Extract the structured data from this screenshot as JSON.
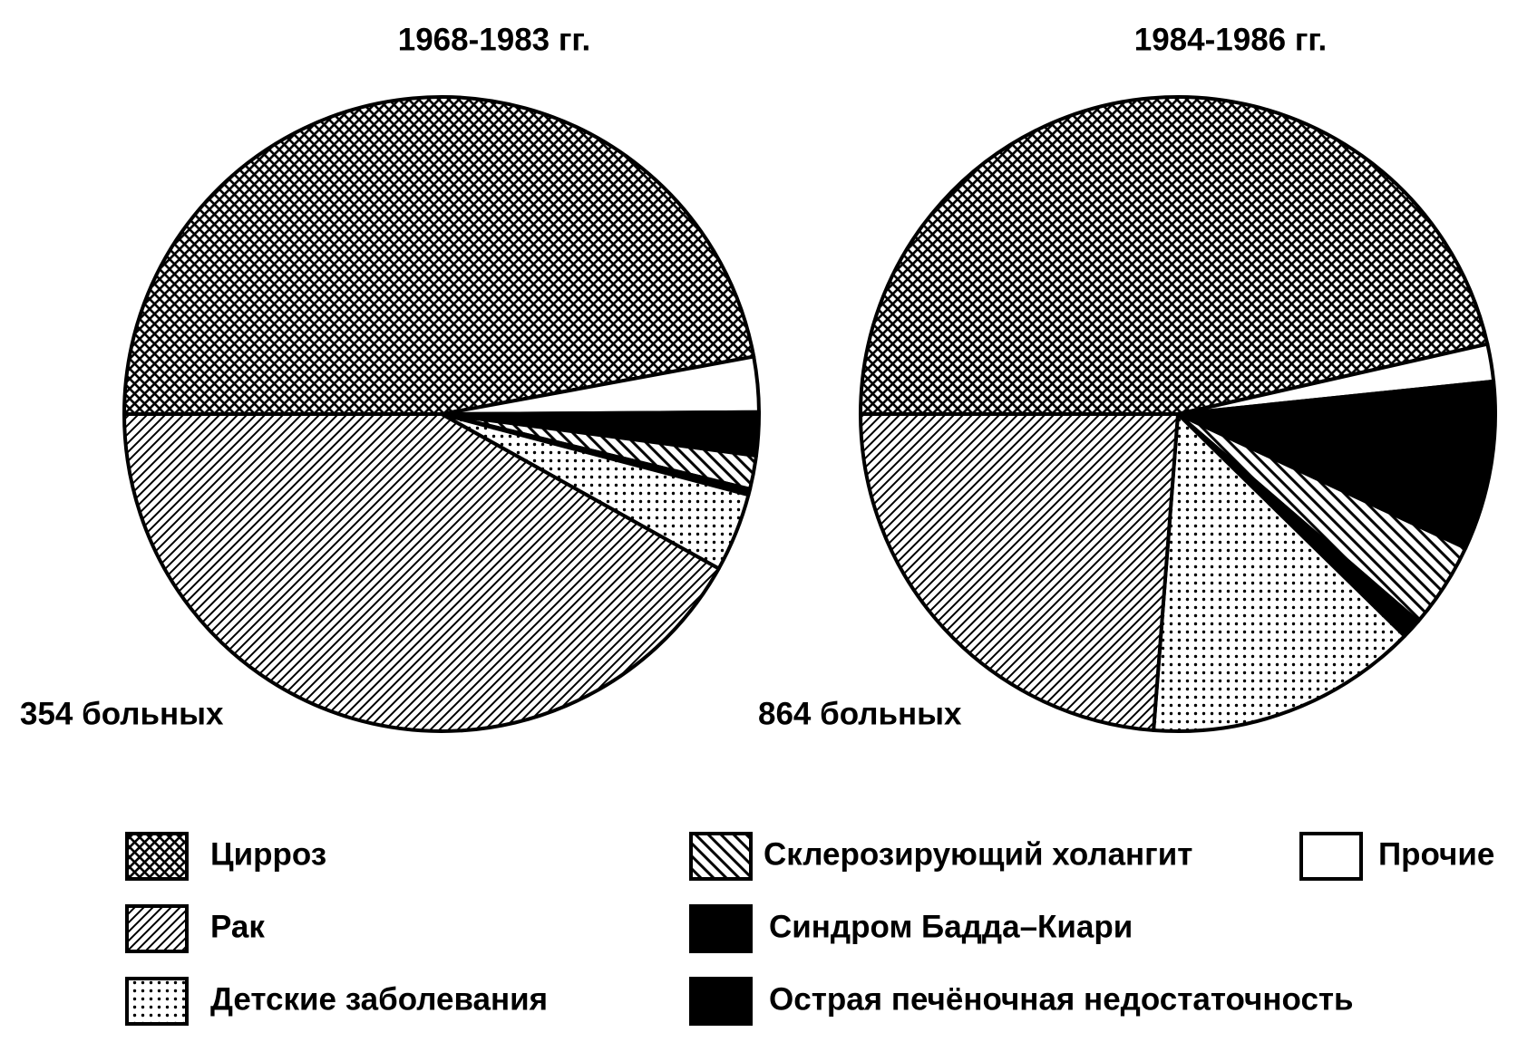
{
  "chart_data": {
    "type": "pie",
    "categories": [
      "Цирроз",
      "Прочие",
      "Острая печёночная недостаточность",
      "Склерозирующий холангит",
      "Синдром Бадда–Киари",
      "Детские заболевания",
      "Рак"
    ],
    "patterns": [
      "crosshatch",
      "white",
      "black",
      "diag-left",
      "black",
      "dots",
      "diag-right"
    ],
    "charts": [
      {
        "title": "1968-1983 гг.",
        "note": "354 больных",
        "values": [
          47.1,
          2.8,
          2.2,
          1.7,
          0.3,
          4.0,
          41.9
        ]
      },
      {
        "title": "1984-1986 гг.",
        "note": "864 больных",
        "values": [
          46.5,
          1.9,
          8.6,
          4.4,
          1.0,
          13.9,
          23.8
        ]
      }
    ]
  }
}
